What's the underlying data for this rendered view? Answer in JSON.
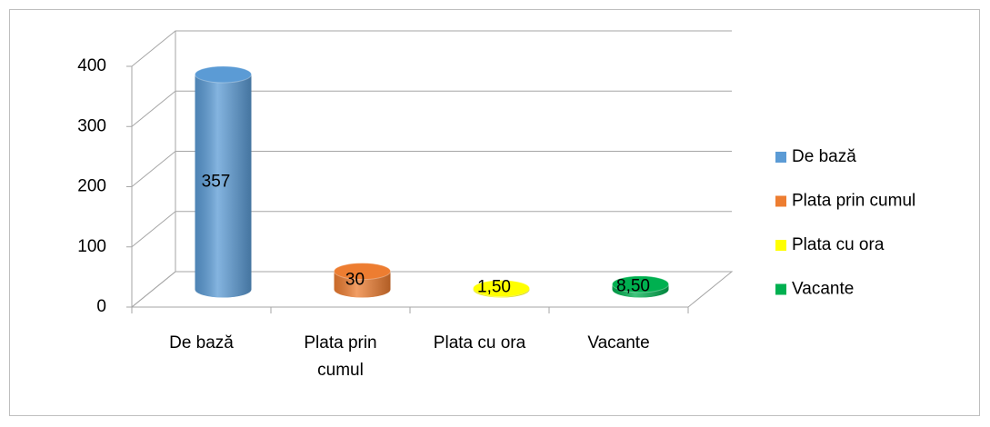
{
  "chart_data": {
    "type": "bar3d",
    "categories": [
      "De bază",
      "Plata prin cumul",
      "Plata cu ora",
      "Vacante"
    ],
    "values": [
      357,
      30,
      1.5,
      8.5
    ],
    "value_labels": [
      "357",
      "30",
      "1,50",
      "8,50"
    ],
    "colors": [
      "#5b9bd5",
      "#ed7d31",
      "#ffff00",
      "#00b050"
    ],
    "ylim": [
      0,
      400
    ],
    "yticks": [
      0,
      100,
      200,
      300,
      400
    ],
    "grid": true,
    "legend": "right"
  }
}
